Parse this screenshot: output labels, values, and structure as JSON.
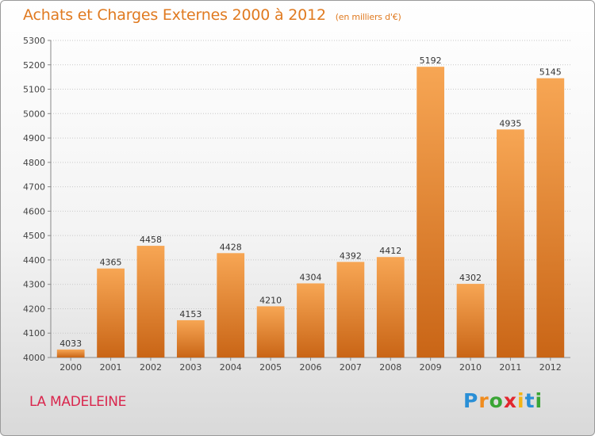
{
  "header": {
    "title": "Achats et Charges Externes 2000 à 2012",
    "subtitle": "(en milliers d'€)"
  },
  "footer": {
    "place": "LA MADELEINE",
    "logo_letters": [
      "P",
      "r",
      "o",
      "x",
      "i",
      "t",
      "i"
    ],
    "logo_colors": [
      "#2a8fd6",
      "#f08c1e",
      "#3aa535",
      "#e2262e",
      "#f4b414",
      "#2a8fd6",
      "#3aa535"
    ]
  },
  "colors": {
    "bar_light": "#f7a654",
    "bar_dark": "#c96516",
    "title": "#e07a20",
    "place": "#d9264d"
  },
  "chart_data": {
    "type": "bar",
    "categories": [
      "2000",
      "2001",
      "2002",
      "2003",
      "2004",
      "2005",
      "2006",
      "2007",
      "2008",
      "2009",
      "2010",
      "2011",
      "2012"
    ],
    "values": [
      4033,
      4365,
      4458,
      4153,
      4428,
      4210,
      4304,
      4392,
      4412,
      5192,
      4302,
      4935,
      5145
    ],
    "ylim": [
      4000,
      5300
    ],
    "yticks": [
      4000,
      4100,
      4200,
      4300,
      4400,
      4500,
      4600,
      4700,
      4800,
      4900,
      5000,
      5100,
      5200,
      5300
    ],
    "grid": true
  }
}
